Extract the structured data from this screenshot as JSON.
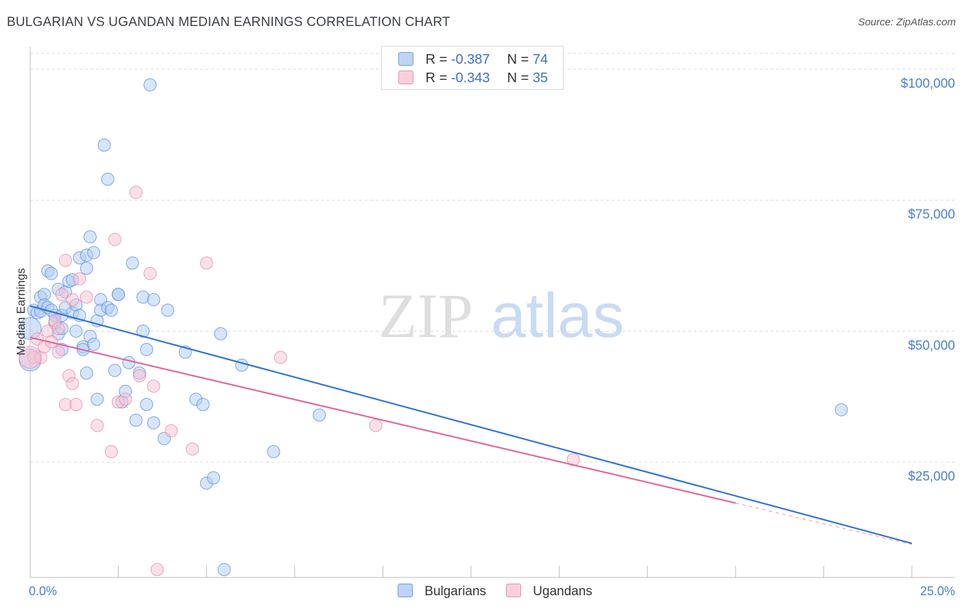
{
  "title": "BULGARIAN VS UGANDAN MEDIAN EARNINGS CORRELATION CHART",
  "source": "Source: ZipAtlas.com",
  "watermark": {
    "zip": "ZIP",
    "atlas": "atlas"
  },
  "colors": {
    "bulgarian_fill": "#aecbf3",
    "bulgarian_stroke": "#5b8fdc",
    "bulgarian_line": "#2f72d6",
    "ugandan_fill": "#f7c1d2",
    "ugandan_stroke": "#e58aa7",
    "ugandan_line": "#e0679a",
    "grid": "#d9d9d9",
    "tick_text": "#4a7fd0"
  },
  "legend": {
    "rows": [
      {
        "r_label": "R =",
        "r_value": "-0.387",
        "n_label": "N =",
        "n_value": "74"
      },
      {
        "r_label": "R =",
        "r_value": "-0.343",
        "n_label": "N =",
        "n_value": "35"
      }
    ]
  },
  "chart_data": {
    "type": "scatter",
    "ylabel": "Median Earnings",
    "xlim": [
      0,
      25
    ],
    "ylim": [
      3000,
      103000
    ],
    "x_tick_labels": [
      "0.0%",
      "25.0%"
    ],
    "y_ticks": [
      {
        "value": 25000,
        "label": "$25,000"
      },
      {
        "value": 50000,
        "label": "$50,000"
      },
      {
        "value": 75000,
        "label": "$75,000"
      },
      {
        "value": 100000,
        "label": "$100,000"
      }
    ],
    "grid": true,
    "legend_position": "top-center",
    "series": [
      {
        "name": "Bulgarians",
        "trend": {
          "x": [
            0.0,
            25.0
          ],
          "y": [
            54800,
            9500
          ]
        },
        "points": [
          [
            0.1,
            54000
          ],
          [
            0.2,
            53500
          ],
          [
            0.3,
            53800
          ],
          [
            0.3,
            56500
          ],
          [
            0.4,
            57000
          ],
          [
            0.4,
            55000
          ],
          [
            0.5,
            61500
          ],
          [
            0.5,
            54500
          ],
          [
            0.6,
            61000
          ],
          [
            0.7,
            53000
          ],
          [
            0.7,
            51500
          ],
          [
            0.8,
            49500
          ],
          [
            0.8,
            58000
          ],
          [
            0.9,
            46500
          ],
          [
            0.9,
            53000
          ],
          [
            1.0,
            54500
          ],
          [
            1.0,
            57500
          ],
          [
            1.1,
            59500
          ],
          [
            1.2,
            59800
          ],
          [
            1.2,
            53500
          ],
          [
            1.3,
            50000
          ],
          [
            1.3,
            55000
          ],
          [
            1.4,
            53000
          ],
          [
            1.4,
            64000
          ],
          [
            1.5,
            47000
          ],
          [
            1.5,
            46500
          ],
          [
            1.6,
            64500
          ],
          [
            1.6,
            42000
          ],
          [
            1.6,
            62000
          ],
          [
            1.7,
            68000
          ],
          [
            1.7,
            49000
          ],
          [
            1.8,
            65000
          ],
          [
            1.8,
            47500
          ],
          [
            1.9,
            52000
          ],
          [
            1.9,
            37000
          ],
          [
            2.0,
            56000
          ],
          [
            2.0,
            54000
          ],
          [
            2.1,
            85500
          ],
          [
            2.2,
            79000
          ],
          [
            2.2,
            54500
          ],
          [
            2.3,
            54000
          ],
          [
            2.4,
            42500
          ],
          [
            2.5,
            57000
          ],
          [
            2.5,
            57000
          ],
          [
            2.6,
            36500
          ],
          [
            2.7,
            38500
          ],
          [
            2.8,
            44000
          ],
          [
            2.9,
            63000
          ],
          [
            3.0,
            33000
          ],
          [
            3.1,
            42000
          ],
          [
            3.2,
            56500
          ],
          [
            3.2,
            50000
          ],
          [
            3.3,
            36000
          ],
          [
            3.3,
            46500
          ],
          [
            3.4,
            97000
          ],
          [
            3.5,
            32500
          ],
          [
            3.5,
            56000
          ],
          [
            3.8,
            29500
          ],
          [
            3.9,
            54000
          ],
          [
            4.4,
            46000
          ],
          [
            4.7,
            37000
          ],
          [
            4.9,
            36000
          ],
          [
            5.0,
            21000
          ],
          [
            5.2,
            22000
          ],
          [
            5.4,
            49500
          ],
          [
            5.5,
            4500
          ],
          [
            6.0,
            43500
          ],
          [
            6.9,
            27000
          ],
          [
            8.2,
            34000
          ],
          [
            23.0,
            35000
          ],
          [
            0.0,
            50500
          ],
          [
            0.0,
            44500
          ],
          [
            0.6,
            54000
          ],
          [
            0.9,
            50500
          ]
        ]
      },
      {
        "name": "Ugandans",
        "trend": {
          "x": [
            0.0,
            20.0
          ],
          "y": [
            48800,
            17200
          ]
        },
        "points": [
          [
            0.1,
            45000
          ],
          [
            0.2,
            48500
          ],
          [
            0.3,
            45000
          ],
          [
            0.4,
            47000
          ],
          [
            0.5,
            50000
          ],
          [
            0.6,
            48000
          ],
          [
            0.7,
            52000
          ],
          [
            0.8,
            46000
          ],
          [
            0.8,
            50500
          ],
          [
            0.9,
            57000
          ],
          [
            1.0,
            36000
          ],
          [
            1.0,
            63500
          ],
          [
            1.1,
            41500
          ],
          [
            1.2,
            56000
          ],
          [
            1.2,
            40000
          ],
          [
            1.3,
            36000
          ],
          [
            1.4,
            60000
          ],
          [
            1.6,
            56500
          ],
          [
            1.9,
            32000
          ],
          [
            2.3,
            27000
          ],
          [
            2.4,
            67500
          ],
          [
            2.5,
            36500
          ],
          [
            2.7,
            37000
          ],
          [
            3.0,
            76500
          ],
          [
            3.1,
            41500
          ],
          [
            3.4,
            61000
          ],
          [
            3.5,
            39500
          ],
          [
            3.6,
            4500
          ],
          [
            4.0,
            31000
          ],
          [
            4.6,
            27500
          ],
          [
            5.0,
            63000
          ],
          [
            7.1,
            45000
          ],
          [
            9.8,
            32000
          ],
          [
            15.4,
            25500
          ],
          [
            0.0,
            45000
          ]
        ]
      }
    ]
  },
  "bottom_legend": {
    "items": [
      "Bulgarians",
      "Ugandans"
    ]
  }
}
